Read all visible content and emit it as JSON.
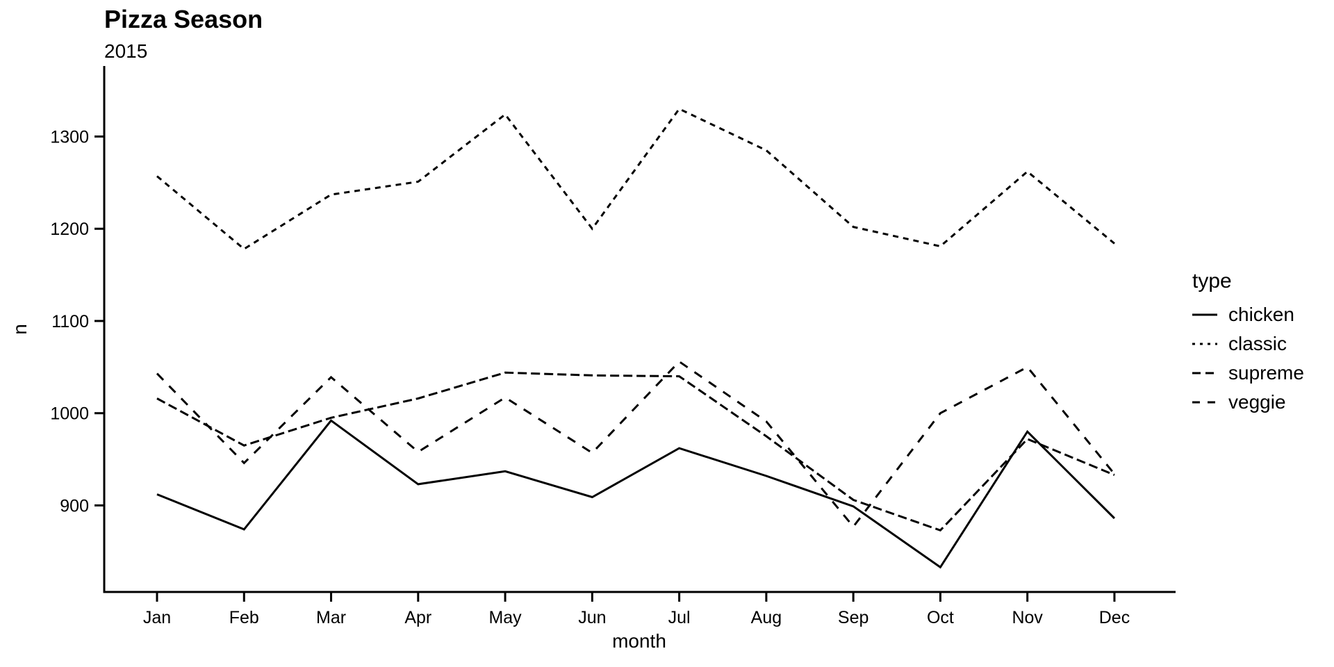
{
  "header": {
    "title": "Pizza Season",
    "subtitle": "2015"
  },
  "axes": {
    "x_label": "month",
    "y_label": "n",
    "x_tick_labels": [
      "Jan",
      "Feb",
      "Mar",
      "Apr",
      "May",
      "Jun",
      "Jul",
      "Aug",
      "Sep",
      "Oct",
      "Nov",
      "Dec"
    ],
    "y_tick_labels": [
      "900",
      "1000",
      "1100",
      "1200",
      "1300"
    ]
  },
  "legend": {
    "title": "type",
    "items": [
      {
        "label": "chicken",
        "linetype": "solid"
      },
      {
        "label": "classic",
        "linetype": "dotted"
      },
      {
        "label": "supreme",
        "linetype": "dashed-tight"
      },
      {
        "label": "veggie",
        "linetype": "dashed-loose"
      }
    ]
  },
  "colors": {
    "line": "#000000",
    "text": "#000000",
    "background": "#ffffff"
  },
  "chart_data": {
    "type": "line",
    "title": "Pizza Season",
    "subtitle": "2015",
    "xlabel": "month",
    "ylabel": "n",
    "categories": [
      "Jan",
      "Feb",
      "Mar",
      "Apr",
      "May",
      "Jun",
      "Jul",
      "Aug",
      "Sep",
      "Oct",
      "Nov",
      "Dec"
    ],
    "y_ticks": [
      900,
      1000,
      1100,
      1200,
      1300
    ],
    "ylim": [
      806,
      1376
    ],
    "grid": false,
    "legend_position": "right",
    "legend_title": "type",
    "series": [
      {
        "name": "chicken",
        "linetype": "solid",
        "values": [
          912,
          874,
          992,
          923,
          937,
          909,
          962,
          932,
          899,
          833,
          980,
          886
        ]
      },
      {
        "name": "classic",
        "linetype": "dotted",
        "values": [
          1257,
          1178,
          1237,
          1251,
          1324,
          1200,
          1330,
          1285,
          1202,
          1181,
          1262,
          1184
        ]
      },
      {
        "name": "supreme",
        "linetype": "dashed-tight",
        "values": [
          1016,
          965,
          995,
          1016,
          1044,
          1041,
          1040,
          975,
          906,
          873,
          972,
          933
        ]
      },
      {
        "name": "veggie",
        "linetype": "dashed-loose",
        "values": [
          1043,
          946,
          1039,
          958,
          1017,
          957,
          1056,
          991,
          877,
          1000,
          1050,
          934
        ]
      }
    ]
  }
}
